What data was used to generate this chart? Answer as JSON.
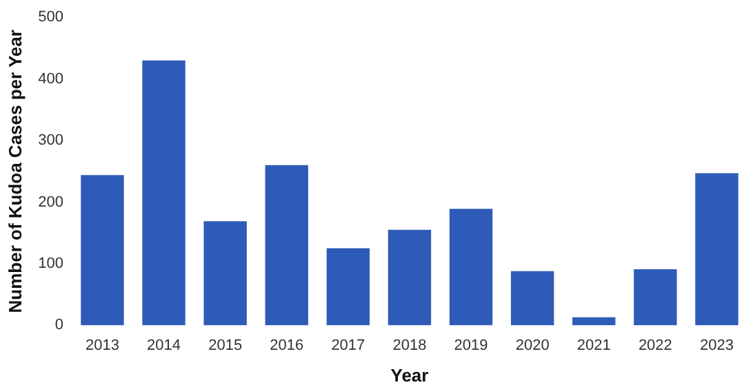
{
  "chart_data": {
    "type": "bar",
    "xlabel": "Year",
    "ylabel": "Number of Kudoa Cases per Year",
    "categories": [
      "2013",
      "2014",
      "2015",
      "2016",
      "2017",
      "2018",
      "2019",
      "2020",
      "2021",
      "2022",
      "2023"
    ],
    "values": [
      244,
      430,
      169,
      260,
      125,
      155,
      189,
      88,
      13,
      91,
      247
    ],
    "color": "#2e5bb8",
    "ylim": [
      0,
      500
    ],
    "yticks": [
      0,
      100,
      200,
      300,
      400,
      500
    ],
    "grid": false,
    "legend": false
  }
}
